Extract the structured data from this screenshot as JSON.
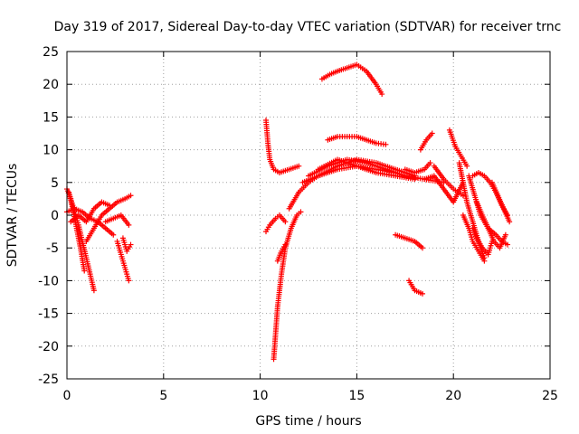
{
  "chart_data": {
    "type": "scatter",
    "title": "Day 319 of 2017, Sidereal Day-to-day VTEC variation (SDTVAR) for receiver trnc",
    "xlabel": "GPS time / hours",
    "ylabel": "SDTVAR / TECUs",
    "xlim": [
      0,
      25
    ],
    "ylim": [
      -25,
      25
    ],
    "xticks": [
      "0",
      "5",
      "10",
      "15",
      "20",
      "25"
    ],
    "yticks": [
      "25",
      "20",
      "15",
      "10",
      "5",
      "0",
      "-5",
      "-10",
      "-15",
      "-20",
      "-25"
    ],
    "grid": true,
    "marker": "+",
    "color": "#ff0000",
    "series": [
      {
        "x": [
          0.0,
          0.2,
          0.4,
          0.6,
          0.8,
          1.0,
          1.2,
          1.4
        ],
        "y": [
          4.0,
          2.5,
          0.5,
          -1.5,
          -4.0,
          -6.5,
          -9.0,
          -11.5
        ]
      },
      {
        "x": [
          0.1,
          0.3,
          0.5,
          0.7,
          0.9
        ],
        "y": [
          3.5,
          1.0,
          -2.0,
          -5.0,
          -8.5
        ]
      },
      {
        "x": [
          0.0,
          0.4,
          0.8,
          1.2,
          1.6,
          2.0,
          2.4
        ],
        "y": [
          0.5,
          1.0,
          0.5,
          -0.5,
          -1.0,
          -2.0,
          -3.0
        ]
      },
      {
        "x": [
          0.2,
          0.6,
          1.0,
          1.4,
          1.8,
          2.2
        ],
        "y": [
          -1.0,
          0.0,
          -1.0,
          1.0,
          2.0,
          1.5
        ]
      },
      {
        "x": [
          1.0,
          1.4,
          1.8,
          2.2,
          2.6,
          3.0,
          3.3
        ],
        "y": [
          -4.0,
          -2.0,
          0.0,
          1.0,
          2.0,
          2.5,
          3.0
        ]
      },
      {
        "x": [
          2.0,
          2.4,
          2.8,
          3.2
        ],
        "y": [
          -1.0,
          -0.5,
          0.0,
          -1.5
        ]
      },
      {
        "x": [
          2.6,
          2.8,
          3.0,
          3.2
        ],
        "y": [
          -4.0,
          -6.0,
          -8.0,
          -10.0
        ]
      },
      {
        "x": [
          2.9,
          3.1,
          3.3
        ],
        "y": [
          -3.5,
          -5.5,
          -4.5
        ]
      },
      {
        "x": [
          10.3,
          10.4,
          10.5,
          10.7,
          11.0,
          11.5,
          12.0
        ],
        "y": [
          14.5,
          11.0,
          8.5,
          7.0,
          6.5,
          7.0,
          7.5
        ]
      },
      {
        "x": [
          10.7,
          10.8,
          10.9,
          11.1,
          11.3,
          11.6,
          11.9,
          12.1
        ],
        "y": [
          -22.0,
          -18.0,
          -14.0,
          -9.0,
          -5.0,
          -2.0,
          0.0,
          0.5
        ]
      },
      {
        "x": [
          10.3,
          10.5,
          10.8,
          11.0,
          11.3
        ],
        "y": [
          -2.5,
          -1.5,
          -0.5,
          0.0,
          -1.0
        ]
      },
      {
        "x": [
          10.9,
          11.1,
          11.3
        ],
        "y": [
          -7.0,
          -5.5,
          -4.5
        ]
      },
      {
        "x": [
          11.5,
          12.0,
          12.5,
          13.0,
          14.0,
          15.0,
          16.0,
          17.0
        ],
        "y": [
          1.0,
          3.5,
          5.0,
          6.0,
          7.0,
          7.5,
          7.0,
          6.5
        ]
      },
      {
        "x": [
          12.2,
          13.0,
          14.0,
          15.0,
          16.0,
          17.0,
          18.0
        ],
        "y": [
          5.0,
          6.0,
          7.5,
          8.5,
          8.0,
          7.0,
          6.0
        ]
      },
      {
        "x": [
          12.5,
          13.5,
          14.5,
          15.5,
          16.5,
          17.5,
          18.5,
          19.5
        ],
        "y": [
          6.0,
          7.5,
          8.5,
          8.0,
          7.0,
          6.0,
          5.5,
          5.0
        ]
      },
      {
        "x": [
          13.0,
          14.0,
          15.0,
          16.0,
          17.0,
          18.0
        ],
        "y": [
          7.0,
          8.5,
          7.5,
          6.5,
          6.0,
          5.5
        ]
      },
      {
        "x": [
          13.2,
          13.6,
          14.0,
          14.5,
          15.0,
          15.5,
          16.0,
          16.3
        ],
        "y": [
          20.8,
          21.5,
          22.0,
          22.5,
          23.0,
          22.0,
          20.0,
          18.5
        ]
      },
      {
        "x": [
          13.5,
          14.0,
          14.5,
          15.0,
          15.5,
          16.0,
          16.5
        ],
        "y": [
          11.5,
          12.0,
          12.0,
          12.0,
          11.5,
          11.0,
          10.8
        ]
      },
      {
        "x": [
          17.5,
          18.0,
          18.5,
          18.8
        ],
        "y": [
          7.0,
          6.5,
          7.0,
          8.0
        ]
      },
      {
        "x": [
          18.3,
          18.6,
          18.9
        ],
        "y": [
          10.0,
          11.5,
          12.5
        ]
      },
      {
        "x": [
          17.0,
          17.5,
          18.0,
          18.4
        ],
        "y": [
          -3.0,
          -3.5,
          -4.0,
          -5.0
        ]
      },
      {
        "x": [
          17.7,
          18.0,
          18.4
        ],
        "y": [
          -10.0,
          -11.5,
          -12.0
        ]
      },
      {
        "x": [
          18.5,
          19.0,
          19.5,
          20.0,
          20.5
        ],
        "y": [
          5.5,
          6.0,
          4.0,
          2.0,
          5.0
        ]
      },
      {
        "x": [
          19.0,
          19.5,
          20.0,
          20.5
        ],
        "y": [
          7.5,
          5.5,
          4.0,
          3.0
        ]
      },
      {
        "x": [
          19.8,
          20.1,
          20.4,
          20.7
        ],
        "y": [
          13.0,
          10.5,
          9.0,
          7.5
        ]
      },
      {
        "x": [
          20.3,
          20.5,
          20.7,
          21.0,
          21.3,
          21.6
        ],
        "y": [
          8.0,
          5.0,
          2.0,
          -1.0,
          -4.0,
          -6.5
        ]
      },
      {
        "x": [
          20.5,
          20.8,
          21.0,
          21.3,
          21.6
        ],
        "y": [
          0.0,
          -2.0,
          -4.0,
          -5.5,
          -7.0
        ]
      },
      {
        "x": [
          20.8,
          21.1,
          21.4,
          21.8,
          22.2,
          22.5,
          22.8
        ],
        "y": [
          6.0,
          3.0,
          0.0,
          -2.0,
          -3.0,
          -4.0,
          -4.5
        ]
      },
      {
        "x": [
          21.0,
          21.3,
          21.6,
          21.9,
          22.2,
          22.5,
          22.8
        ],
        "y": [
          6.0,
          6.5,
          6.0,
          5.0,
          3.5,
          1.5,
          0.0
        ]
      },
      {
        "x": [
          21.2,
          21.5,
          21.8,
          22.1,
          22.4,
          22.7
        ],
        "y": [
          2.0,
          0.0,
          -2.0,
          -4.0,
          -5.0,
          -3.0
        ]
      },
      {
        "x": [
          21.0,
          21.2,
          21.5,
          21.8,
          22.0
        ],
        "y": [
          -2.0,
          -3.5,
          -5.0,
          -6.0,
          -4.0
        ]
      },
      {
        "x": [
          22.0,
          22.3,
          22.6,
          22.9
        ],
        "y": [
          5.0,
          3.0,
          1.0,
          -1.0
        ]
      }
    ]
  }
}
